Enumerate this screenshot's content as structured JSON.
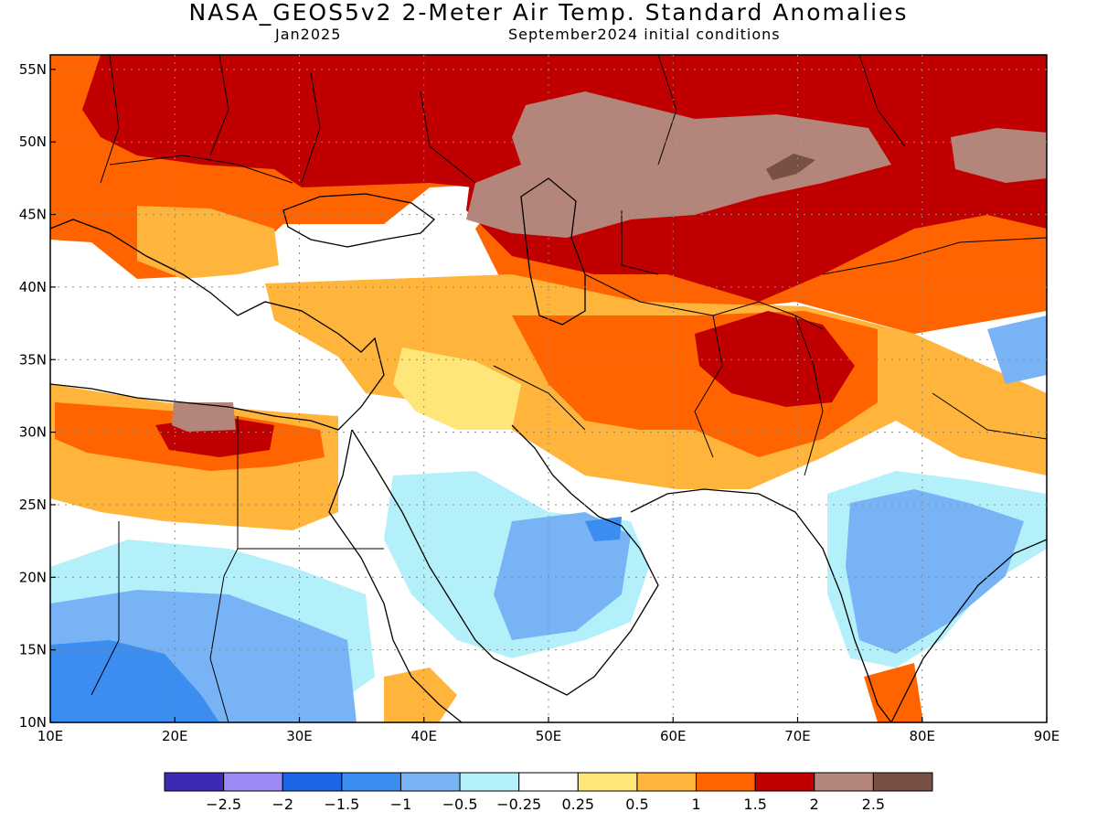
{
  "header": {
    "title": "NASA_GEOS5v2 2-Meter Air Temp. Standard Anomalies",
    "forecast_month": "Jan2025",
    "initial_conditions": "September2024 initial conditions"
  },
  "map": {
    "projection": "lat-lon",
    "lon_range": [
      10,
      90
    ],
    "lat_range": [
      10,
      56
    ],
    "lon_ticks": [
      10,
      20,
      30,
      40,
      50,
      60,
      70,
      80,
      90
    ],
    "lat_ticks": [
      10,
      15,
      20,
      25,
      30,
      35,
      40,
      45,
      50,
      55
    ],
    "lon_tick_labels": [
      "10E",
      "20E",
      "30E",
      "40E",
      "50E",
      "60E",
      "70E",
      "80E",
      "90E"
    ],
    "lat_tick_labels": [
      "10N",
      "15N",
      "20N",
      "25N",
      "30N",
      "35N",
      "40N",
      "45N",
      "50N",
      "55N"
    ],
    "grid": "dotted"
  },
  "colorbar": {
    "colors": [
      "#3b2bb4",
      "#9c8af5",
      "#1e64e6",
      "#3c8df0",
      "#78b4f5",
      "#b4f0fa",
      "#ffffff",
      "#ffe678",
      "#ffb43c",
      "#ff6400",
      "#c00000",
      "#b4857a",
      "#785046"
    ],
    "labels": [
      "-2.5",
      "-2",
      "-1.5",
      "-1",
      "-0.5",
      "-0.25",
      "0.25",
      "0.5",
      "1",
      "1.5",
      "2",
      "2.5"
    ]
  }
}
